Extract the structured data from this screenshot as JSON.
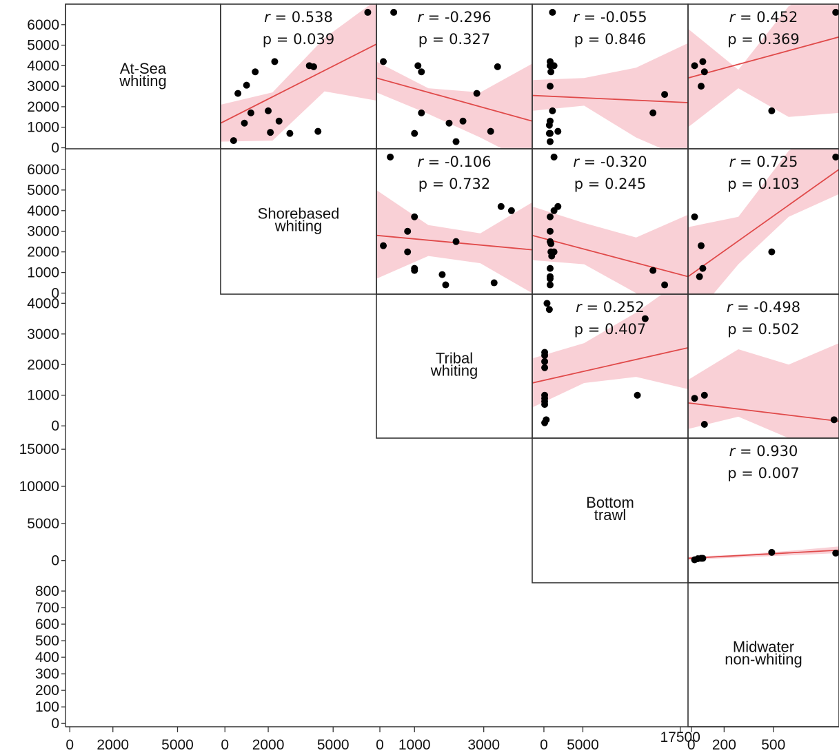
{
  "chart_data": {
    "type": "scatter",
    "variables": [
      {
        "name": "At-Sea whiting",
        "lines": [
          "At-Sea",
          "whiting"
        ]
      },
      {
        "name": "Shorebased whiting",
        "lines": [
          "Shorebased",
          "whiting"
        ]
      },
      {
        "name": "Tribal whiting",
        "lines": [
          "Tribal",
          "whiting"
        ]
      },
      {
        "name": "Bottom trawl",
        "lines": [
          "Bottom",
          "trawl"
        ]
      },
      {
        "name": "Midwater non-whiting",
        "lines": [
          "Midwater",
          "non-whiting"
        ]
      }
    ],
    "y_ticks": [
      [
        "0",
        "1000",
        "2000",
        "3000",
        "4000",
        "5000",
        "6000"
      ],
      [
        "0",
        "1000",
        "2000",
        "3000",
        "4000",
        "5000",
        "6000"
      ],
      [
        "0",
        "1000",
        "2000",
        "3000",
        "4000"
      ],
      [
        "0",
        "5000",
        "10000",
        "15000"
      ],
      [
        "0",
        "100",
        "200",
        "300",
        "400",
        "500",
        "600",
        "700",
        "800"
      ]
    ],
    "x_ticks": [
      [
        "0",
        "2000",
        "5000"
      ],
      [
        "0",
        "2000",
        "5000"
      ],
      [
        "0",
        "1000",
        "3000"
      ],
      [
        "0",
        "5000",
        "17500"
      ],
      [
        "0",
        "200",
        "500"
      ]
    ],
    "panels": [
      {
        "row": 0,
        "col": 1,
        "r": "0.538",
        "p": "0.039",
        "points": [
          [
            400,
            350
          ],
          [
            600,
            2650
          ],
          [
            1000,
            3050
          ],
          [
            900,
            1200
          ],
          [
            1200,
            1700
          ],
          [
            1400,
            3700
          ],
          [
            2100,
            750
          ],
          [
            2000,
            1800
          ],
          [
            2300,
            4200
          ],
          [
            2500,
            1300
          ],
          [
            3000,
            700
          ],
          [
            3900,
            4000
          ],
          [
            4100,
            3950
          ],
          [
            4300,
            800
          ],
          [
            6600,
            6600
          ]
        ],
        "fit": [
          1200,
          5050
        ],
        "band_low": [
          300,
          350,
          2750,
          2300
        ],
        "band_high": [
          2100,
          2700,
          5350,
          7200
        ]
      },
      {
        "row": 0,
        "col": 2,
        "r": "-0.296",
        "p": "0.327",
        "points": [
          [
            100,
            4200
          ],
          [
            400,
            6600
          ],
          [
            1000,
            700
          ],
          [
            1100,
            4000
          ],
          [
            1200,
            3700
          ],
          [
            1200,
            1700
          ],
          [
            2000,
            1200
          ],
          [
            2200,
            300
          ],
          [
            2400,
            1300
          ],
          [
            2800,
            2650
          ],
          [
            3200,
            800
          ],
          [
            3400,
            3950
          ]
        ],
        "fit": [
          3400,
          1300
        ],
        "band_low": [
          2700,
          1650,
          500,
          -800
        ],
        "band_high": [
          4200,
          2900,
          2700,
          4100
        ]
      },
      {
        "row": 0,
        "col": 3,
        "r": "-0.055",
        "p": "0.846",
        "points": [
          [
            800,
            4200
          ],
          [
            800,
            4000
          ],
          [
            900,
            3700
          ],
          [
            800,
            3000
          ],
          [
            1100,
            1800
          ],
          [
            800,
            1300
          ],
          [
            700,
            1100
          ],
          [
            700,
            700
          ],
          [
            800,
            700
          ],
          [
            800,
            300
          ],
          [
            1300,
            4000
          ],
          [
            1800,
            800
          ],
          [
            1100,
            6600
          ],
          [
            14000,
            1700
          ],
          [
            15500,
            2600
          ]
        ],
        "fit": [
          2550,
          2200
        ],
        "band_low": [
          1800,
          2050,
          500,
          -600
        ],
        "band_high": [
          3300,
          3400,
          3900,
          5100
        ]
      },
      {
        "row": 0,
        "col": 4,
        "r": "0.452",
        "p": "0.369",
        "points": [
          [
            20,
            4000
          ],
          [
            60,
            3000
          ],
          [
            70,
            4200
          ],
          [
            80,
            3700
          ],
          [
            490,
            1800
          ],
          [
            880,
            6600
          ]
        ],
        "fit": [
          3400,
          5400
        ],
        "band_low": [
          1000,
          2900,
          1500,
          1700
        ],
        "band_high": [
          5800,
          3800,
          6900,
          8400
        ]
      },
      {
        "row": 1,
        "col": 2,
        "r": "-0.106",
        "p": "0.732",
        "points": [
          [
            100,
            2300
          ],
          [
            300,
            6600
          ],
          [
            800,
            3000
          ],
          [
            800,
            2000
          ],
          [
            1000,
            3700
          ],
          [
            1000,
            1200
          ],
          [
            1000,
            1100
          ],
          [
            1800,
            900
          ],
          [
            1900,
            400
          ],
          [
            2200,
            2500
          ],
          [
            3300,
            500
          ],
          [
            3500,
            4200
          ],
          [
            3800,
            4000
          ]
        ],
        "fit": [
          2800,
          2100
        ],
        "band_low": [
          700,
          1800,
          1450,
          0
        ],
        "band_high": [
          5000,
          3300,
          2900,
          4400
        ]
      },
      {
        "row": 1,
        "col": 3,
        "r": "-0.320",
        "p": "0.245",
        "points": [
          [
            800,
            3700
          ],
          [
            800,
            3000
          ],
          [
            800,
            2500
          ],
          [
            900,
            2400
          ],
          [
            900,
            2000
          ],
          [
            1000,
            1800
          ],
          [
            800,
            1200
          ],
          [
            800,
            800
          ],
          [
            800,
            700
          ],
          [
            800,
            400
          ],
          [
            1300,
            2000
          ],
          [
            1300,
            4000
          ],
          [
            1300,
            6600
          ],
          [
            1800,
            4200
          ],
          [
            14000,
            1100
          ],
          [
            15500,
            400
          ]
        ],
        "fit": [
          2800,
          800
        ],
        "band_low": [
          1600,
          1400,
          0,
          -2500
        ],
        "band_high": [
          4200,
          3400,
          2700,
          3800
        ]
      },
      {
        "row": 1,
        "col": 4,
        "r": "0.725",
        "p": "0.103",
        "points": [
          [
            20,
            3700
          ],
          [
            60,
            2300
          ],
          [
            70,
            1200
          ],
          [
            50,
            800
          ],
          [
            490,
            2000
          ],
          [
            880,
            6600
          ]
        ],
        "fit": [
          800,
          6000
        ],
        "band_low": [
          -1500,
          1400,
          3700,
          4800
        ],
        "band_high": [
          3200,
          3700,
          6900,
          8500
        ]
      },
      {
        "row": 2,
        "col": 3,
        "r": "0.252",
        "p": "0.407",
        "points": [
          [
            400,
            4000
          ],
          [
            700,
            3800
          ],
          [
            100,
            2400
          ],
          [
            100,
            2300
          ],
          [
            100,
            2100
          ],
          [
            100,
            1900
          ],
          [
            100,
            1000
          ],
          [
            100,
            900
          ],
          [
            100,
            800
          ],
          [
            100,
            700
          ],
          [
            300,
            200
          ],
          [
            100,
            100
          ],
          [
            12000,
            1000
          ],
          [
            13000,
            3500
          ]
        ],
        "fit": [
          1400,
          2550
        ],
        "band_low": [
          600,
          1400,
          1600,
          1200
        ],
        "band_high": [
          2200,
          2700,
          3700,
          4900
        ]
      },
      {
        "row": 2,
        "col": 4,
        "r": "-0.498",
        "p": "0.502",
        "points": [
          [
            20,
            900
          ],
          [
            80,
            1000
          ],
          [
            80,
            50
          ],
          [
            870,
            200
          ]
        ],
        "fit": [
          750,
          150
        ],
        "band_low": [
          -100,
          300,
          -400,
          -1500
        ],
        "band_high": [
          1500,
          2500,
          2000,
          2700
        ]
      },
      {
        "row": 3,
        "col": 4,
        "r": "0.930",
        "p": "0.007",
        "points": [
          [
            20,
            100
          ],
          [
            40,
            250
          ],
          [
            60,
            300
          ],
          [
            70,
            300
          ],
          [
            490,
            1100
          ],
          [
            880,
            1000
          ]
        ],
        "fit": [
          300,
          1400
        ],
        "band_low": [
          100,
          400,
          700,
          1000
        ],
        "band_high": [
          500,
          800,
          1300,
          1900
        ]
      }
    ]
  }
}
